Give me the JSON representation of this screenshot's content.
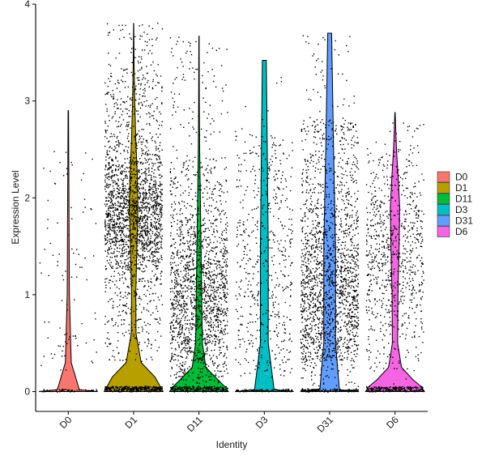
{
  "chart_data": {
    "type": "violin",
    "title": "",
    "xlabel": "Identity",
    "ylabel": "Expression Level",
    "ylim": [
      -0.2,
      4.0
    ],
    "yticks": [
      0,
      1,
      2,
      3,
      4
    ],
    "grid": false,
    "legend_position": "right",
    "categories": [
      "D0",
      "D1",
      "D11",
      "D3",
      "D31",
      "D6"
    ],
    "series": [
      {
        "name": "D0",
        "color": "#F8766D",
        "max": 2.9,
        "violin": [
          [
            0,
            0.04
          ],
          [
            0.02,
            0.015
          ],
          [
            0.3,
            0.004
          ],
          [
            1.0,
            0.0015
          ],
          [
            2.9,
            0.0003
          ]
        ]
      },
      {
        "name": "D1",
        "color": "#B79F00",
        "max": 3.8,
        "violin": [
          [
            0,
            0.55
          ],
          [
            0.05,
            0.5
          ],
          [
            0.15,
            0.4
          ],
          [
            0.3,
            0.14
          ],
          [
            0.6,
            0.045
          ],
          [
            1.0,
            0.04
          ],
          [
            1.5,
            0.06
          ],
          [
            1.9,
            0.08
          ],
          [
            2.2,
            0.07
          ],
          [
            2.6,
            0.04
          ],
          [
            3.0,
            0.02
          ],
          [
            3.4,
            0.008
          ],
          [
            3.8,
            0.002
          ]
        ]
      },
      {
        "name": "D11",
        "color": "#00BA38",
        "max": 3.67,
        "violin": [
          [
            0,
            0.43
          ],
          [
            0.05,
            0.38
          ],
          [
            0.12,
            0.28
          ],
          [
            0.25,
            0.1
          ],
          [
            0.5,
            0.05
          ],
          [
            1.0,
            0.04
          ],
          [
            1.5,
            0.03
          ],
          [
            2.0,
            0.02
          ],
          [
            2.5,
            0.01
          ],
          [
            3.0,
            0.005
          ],
          [
            3.67,
            0.002
          ]
        ]
      },
      {
        "name": "D3",
        "color": "#00BFC4",
        "max": 3.42,
        "violin": [
          [
            0,
            0.03
          ],
          [
            0.02,
            0.01
          ],
          [
            0.5,
            0.004
          ],
          [
            1.5,
            0.004
          ],
          [
            2.5,
            0.003
          ],
          [
            3.42,
            0.002
          ]
        ]
      },
      {
        "name": "D31",
        "color": "#619CFF",
        "max": 3.7,
        "violin": [
          [
            0,
            0.03
          ],
          [
            0.02,
            0.01
          ],
          [
            0.5,
            0.006
          ],
          [
            1.5,
            0.006
          ],
          [
            2.5,
            0.004
          ],
          [
            3.7,
            0.002
          ]
        ]
      },
      {
        "name": "D6",
        "color": "#F564E3",
        "max": 2.88,
        "violin": [
          [
            0,
            1.0
          ],
          [
            0.05,
            0.9
          ],
          [
            0.12,
            0.62
          ],
          [
            0.25,
            0.22
          ],
          [
            0.5,
            0.09
          ],
          [
            1.0,
            0.1
          ],
          [
            1.5,
            0.14
          ],
          [
            1.9,
            0.16
          ],
          [
            2.2,
            0.11
          ],
          [
            2.5,
            0.05
          ],
          [
            2.88,
            0.005
          ]
        ]
      }
    ],
    "points": {
      "D0": {
        "n": 150,
        "mix": [
          [
            0.45,
            0.3,
            2.5,
            "u"
          ],
          [
            0.2,
            0.2,
            0.7,
            "u"
          ],
          [
            0.25,
            0.0,
            0.02,
            "z"
          ]
        ]
      },
      "D1": {
        "n": 2600,
        "mix": [
          [
            0.55,
            1.85,
            0.35,
            "n"
          ],
          [
            0.27,
            0.3,
            3.3,
            "u"
          ],
          [
            0.12,
            0.0,
            0.05,
            "z"
          ],
          [
            0.06,
            2.8,
            3.8,
            "u"
          ]
        ]
      },
      "D11": {
        "n": 2000,
        "mix": [
          [
            0.6,
            0.95,
            0.5,
            "n"
          ],
          [
            0.25,
            0.2,
            2.4,
            "u"
          ],
          [
            0.1,
            0.0,
            0.05,
            "z"
          ],
          [
            0.05,
            2.4,
            3.7,
            "u"
          ]
        ]
      },
      "D3": {
        "n": 700,
        "mix": [
          [
            0.78,
            0.15,
            2.65,
            "u"
          ],
          [
            0.2,
            0.0,
            0.02,
            "z"
          ],
          [
            0.02,
            2.6,
            3.4,
            "u"
          ]
        ]
      },
      "D31": {
        "n": 2100,
        "mix": [
          [
            0.45,
            0.95,
            0.45,
            "n"
          ],
          [
            0.45,
            0.3,
            2.8,
            "u"
          ],
          [
            0.08,
            0.0,
            0.02,
            "z"
          ],
          [
            0.02,
            2.8,
            3.7,
            "u"
          ]
        ]
      },
      "D6": {
        "n": 1050,
        "mix": [
          [
            0.45,
            1.45,
            0.5,
            "n"
          ],
          [
            0.3,
            0.2,
            2.5,
            "u"
          ],
          [
            0.23,
            0.0,
            0.05,
            "z"
          ],
          [
            0.02,
            2.5,
            2.88,
            "u"
          ]
        ]
      }
    }
  }
}
